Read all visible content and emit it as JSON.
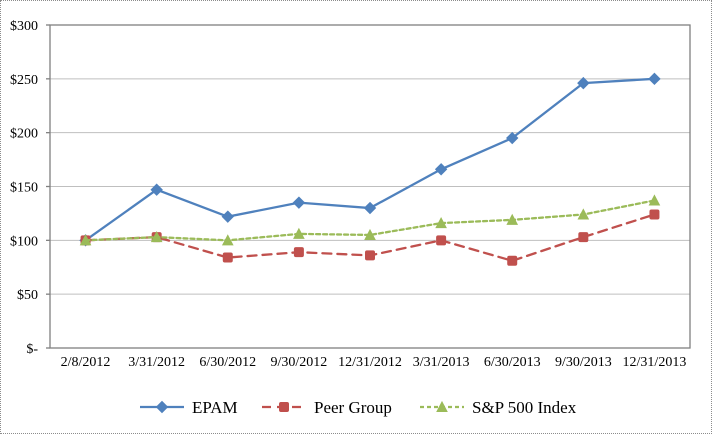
{
  "chart_data": {
    "type": "line",
    "title": "",
    "categories": [
      "2/8/2012",
      "3/31/2012",
      "6/30/2012",
      "9/30/2012",
      "12/31/2012",
      "3/31/2013",
      "6/30/2013",
      "9/30/2013",
      "12/31/2013"
    ],
    "series": [
      {
        "name": "EPAM",
        "values": [
          100,
          147,
          122,
          135,
          130,
          166,
          195,
          246,
          250
        ],
        "color": "#4F81BD",
        "marker": "diamond",
        "line_style": "solid"
      },
      {
        "name": "Peer Group",
        "values": [
          100,
          103,
          84,
          89,
          86,
          100,
          81,
          103,
          124
        ],
        "color": "#C0504D",
        "marker": "square",
        "line_style": "dashed"
      },
      {
        "name": "S&P 500 Index",
        "values": [
          100,
          103,
          100,
          106,
          105,
          116,
          119,
          124,
          137
        ],
        "color": "#9BBB59",
        "marker": "triangle",
        "line_style": "fine-dashed"
      }
    ],
    "y_axis": {
      "min": 0,
      "max": 300,
      "step": 50,
      "tick_labels": [
        "$-",
        "$50",
        "$100",
        "$150",
        "$200",
        "$250",
        "$300"
      ]
    },
    "x_axis": {
      "tick_labels": [
        "2/8/2012",
        "3/31/2012",
        "6/30/2012",
        "9/30/2012",
        "12/31/2012",
        "3/31/2013",
        "6/30/2013",
        "9/30/2013",
        "12/31/2013"
      ]
    },
    "grid": true,
    "legend_position": "bottom",
    "colors": {
      "gridline": "#BFBFBF",
      "plot_border": "#808080",
      "outer_border_dotted": "#8C8C8C",
      "background": "#FFFFFF",
      "text": "#000000"
    }
  }
}
